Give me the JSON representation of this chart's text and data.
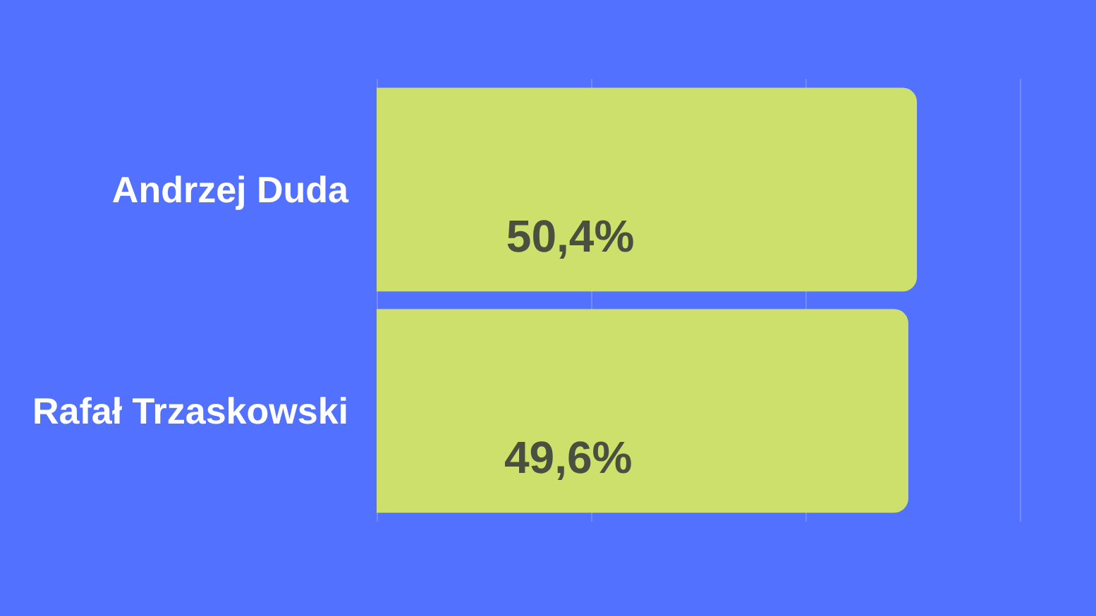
{
  "chart_data": {
    "type": "bar",
    "orientation": "horizontal",
    "categories": [
      "Andrzej Duda",
      "Rafał Trzaskowski"
    ],
    "values": [
      50.4,
      49.6
    ],
    "color": "#cde06b",
    "value_labels": [
      "50,4%",
      "49,6%"
    ],
    "xlim": [
      0,
      60
    ],
    "xticks": [
      {
        "value": 0,
        "label": null
      },
      {
        "value": 20,
        "label": null
      },
      {
        "value": 40,
        "label": null
      },
      {
        "value": 60,
        "label": null
      }
    ],
    "grid": "x",
    "tick_labels": "y"
  }
}
